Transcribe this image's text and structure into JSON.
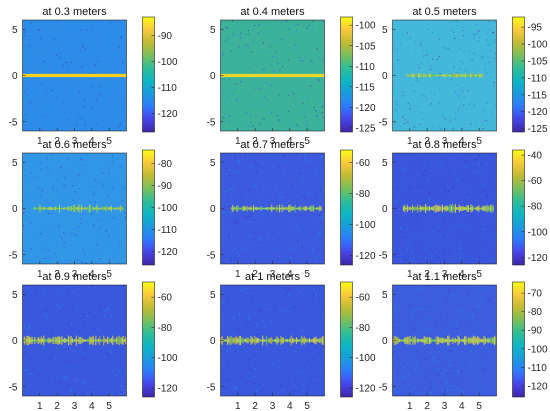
{
  "chart_data": [
    {
      "type": "heatmap",
      "title": "at 0.3 meters",
      "xticks": [
        "1",
        "2",
        "3",
        "4",
        "5"
      ],
      "yticks": [
        "5",
        "0",
        "-5"
      ],
      "xlim": [
        0,
        6
      ],
      "ylim": [
        -6,
        6
      ],
      "colorbar": {
        "ticks": [
          -90,
          -100,
          -110,
          -120
        ],
        "range": [
          -127,
          -83
        ]
      },
      "background_level": -108,
      "background_color": "#2d8ce8",
      "line_color": "#f6d21e",
      "signal": {
        "y_center": 0,
        "visible_x_range": [
          0,
          6
        ],
        "structure": "uniform"
      }
    },
    {
      "type": "heatmap",
      "title": "at 0.4 meters",
      "xticks": [
        "1",
        "2",
        "3",
        "4",
        "5"
      ],
      "yticks": [
        "5",
        "0",
        "-5"
      ],
      "xlim": [
        0,
        6
      ],
      "ylim": [
        -6,
        6
      ],
      "colorbar": {
        "ticks": [
          -100,
          -105,
          -110,
          -115,
          -120,
          -125
        ],
        "range": [
          -126,
          -98
        ]
      },
      "background_level": -110,
      "background_color": "#3cb29a",
      "line_color": "#e8d62a",
      "signal": {
        "y_center": 0,
        "visible_x_range": [
          0,
          6
        ],
        "structure": "uniform"
      }
    },
    {
      "type": "heatmap",
      "title": "at 0.5 meters",
      "xticks": [
        "1",
        "2",
        "3",
        "4",
        "5"
      ],
      "yticks": [
        "5",
        "0",
        "-5"
      ],
      "xlim": [
        0,
        6
      ],
      "ylim": [
        -6,
        6
      ],
      "colorbar": {
        "ticks": [
          -95,
          -100,
          -105,
          -110,
          -115,
          -120,
          -125
        ],
        "range": [
          -126,
          -92
        ]
      },
      "background_level": -112,
      "background_color": "#44b8d8",
      "line_color": "#d6d836",
      "signal": {
        "y_center": 0,
        "visible_x_range": [
          0.8,
          5.2
        ],
        "structure": "weak"
      }
    },
    {
      "type": "heatmap",
      "title": "at 0.6 meters",
      "xticks": [
        "1",
        "2",
        "3",
        "4",
        "5"
      ],
      "yticks": [
        "5",
        "0",
        "-5"
      ],
      "xlim": [
        0,
        6
      ],
      "ylim": [
        -6,
        6
      ],
      "colorbar": {
        "ticks": [
          -80,
          -90,
          -100,
          -110,
          -120
        ],
        "range": [
          -126,
          -74
        ]
      },
      "background_level": -108,
      "background_color": "#3196e6",
      "line_color": "#c4d63c",
      "signal": {
        "y_center": 0,
        "visible_x_range": [
          0.6,
          5.8
        ],
        "structure": "bursts"
      }
    },
    {
      "type": "heatmap",
      "title": "at 0.7 meters",
      "xticks": [
        "1",
        "2",
        "3",
        "4",
        "5"
      ],
      "yticks": [
        "5",
        "0",
        "-5"
      ],
      "xlim": [
        0,
        6
      ],
      "ylim": [
        -6,
        6
      ],
      "colorbar": {
        "ticks": [
          -60,
          -80,
          -100,
          -120
        ],
        "range": [
          -126,
          -52
        ]
      },
      "background_level": -112,
      "background_color": "#3c5ade",
      "line_color": "#c2d840",
      "signal": {
        "y_center": 0,
        "visible_x_range": [
          0.6,
          5.8
        ],
        "structure": "bursts"
      }
    },
    {
      "type": "heatmap",
      "title": "at 0.8 meters",
      "xticks": [
        "1",
        "2",
        "3",
        "4",
        "5"
      ],
      "yticks": [
        "5",
        "0",
        "-5"
      ],
      "xlim": [
        0,
        6
      ],
      "ylim": [
        -6,
        6
      ],
      "colorbar": {
        "ticks": [
          -40,
          -60,
          -80,
          -100,
          -120
        ],
        "range": [
          -126,
          -36
        ]
      },
      "background_level": -112,
      "background_color": "#3a56dc",
      "line_color": "#d6dc34",
      "signal": {
        "y_center": 0,
        "visible_x_range": [
          0.6,
          5.8
        ],
        "structure": "dense"
      }
    },
    {
      "type": "heatmap",
      "title": "at 0.9 meters",
      "xticks": [
        "1",
        "2",
        "3",
        "4",
        "5"
      ],
      "yticks": [
        "5",
        "0",
        "-5"
      ],
      "xlim": [
        0,
        6
      ],
      "ylim": [
        -6,
        6
      ],
      "colorbar": {
        "ticks": [
          -60,
          -80,
          -100,
          -120
        ],
        "range": [
          -126,
          -50
        ]
      },
      "background_level": -112,
      "background_color": "#3a58de",
      "line_color": "#e2d830",
      "signal": {
        "y_center": 0,
        "visible_x_range": [
          0.0,
          6.0
        ],
        "structure": "dense"
      }
    },
    {
      "type": "heatmap",
      "title": "at 1 meters",
      "xticks": [
        "1",
        "2",
        "3",
        "4",
        "5"
      ],
      "yticks": [
        "5",
        "0",
        "-5"
      ],
      "xlim": [
        0,
        6
      ],
      "ylim": [
        -6,
        6
      ],
      "colorbar": {
        "ticks": [
          -60,
          -80,
          -100,
          -120
        ],
        "range": [
          -126,
          -50
        ]
      },
      "background_level": -112,
      "background_color": "#3a58de",
      "line_color": "#d8d834",
      "signal": {
        "y_center": 0,
        "visible_x_range": [
          0.0,
          6.0
        ],
        "structure": "dense"
      }
    },
    {
      "type": "heatmap",
      "title": "at 1.1 meters",
      "xticks": [
        "1",
        "2",
        "3",
        "4",
        "5"
      ],
      "yticks": [
        "5",
        "0",
        "-5"
      ],
      "xlim": [
        0,
        6
      ],
      "ylim": [
        -6,
        6
      ],
      "colorbar": {
        "ticks": [
          -70,
          -80,
          -90,
          -100,
          -110,
          -120
        ],
        "range": [
          -126,
          -64
        ]
      },
      "background_level": -112,
      "background_color": "#3c5ede",
      "line_color": "#d6dc34",
      "signal": {
        "y_center": 0,
        "visible_x_range": [
          0.0,
          6.0
        ],
        "structure": "dense"
      }
    }
  ],
  "colormap": [
    "#3e26a8",
    "#4744e8",
    "#2f79fe",
    "#1a9bdd",
    "#0eb5c4",
    "#2ebd96",
    "#7abf5c",
    "#c0bb33",
    "#f8c93c",
    "#f9fb14"
  ]
}
